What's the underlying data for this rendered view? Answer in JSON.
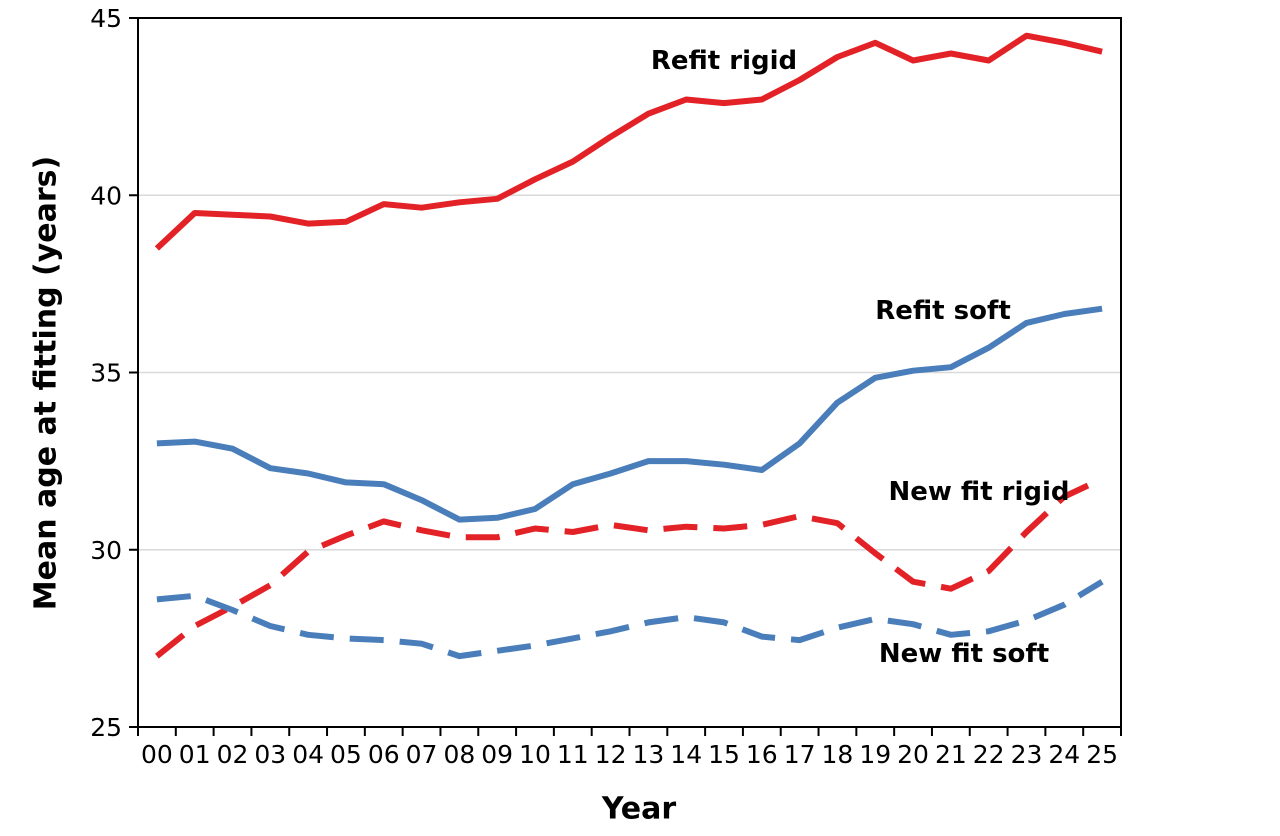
{
  "chart_data": {
    "type": "line",
    "title": "",
    "xlabel": "Year",
    "ylabel": "Mean age at fitting (years)",
    "x_labels": [
      "00",
      "01",
      "02",
      "03",
      "04",
      "05",
      "06",
      "07",
      "08",
      "09",
      "10",
      "11",
      "12",
      "13",
      "14",
      "15",
      "16",
      "17",
      "18",
      "19",
      "20",
      "21",
      "22",
      "23",
      "24",
      "25"
    ],
    "ylim": [
      25,
      45
    ],
    "y_ticks": [
      25,
      30,
      35,
      40,
      45
    ],
    "grid": "horizontal-light-gray",
    "legend_position": "inline-annotations",
    "frame_color": "#000000",
    "gridline_color": "#d9d9d9",
    "series": [
      {
        "name": "Refit rigid",
        "color": "#e32227",
        "style": "solid",
        "values": [
          38.5,
          39.5,
          39.45,
          39.4,
          39.2,
          39.25,
          39.75,
          39.65,
          39.8,
          39.9,
          40.45,
          40.95,
          41.65,
          42.3,
          42.7,
          42.6,
          42.7,
          43.25,
          43.9,
          44.3,
          43.8,
          44.0,
          43.8,
          44.5,
          44.3,
          44.05
        ]
      },
      {
        "name": "Refit soft",
        "color": "#4a7eba",
        "style": "solid",
        "values": [
          33.0,
          33.05,
          32.85,
          32.3,
          32.15,
          31.9,
          31.85,
          31.4,
          30.85,
          30.9,
          31.15,
          31.85,
          32.15,
          32.5,
          32.5,
          32.4,
          32.25,
          33.0,
          34.15,
          34.85,
          35.05,
          35.15,
          35.7,
          36.4,
          36.65,
          36.8
        ]
      },
      {
        "name": "New fit rigid",
        "color": "#e32227",
        "style": "dashed",
        "values": [
          27.0,
          27.85,
          28.4,
          29.0,
          29.95,
          30.4,
          30.8,
          30.55,
          30.35,
          30.35,
          30.6,
          30.5,
          30.7,
          30.55,
          30.65,
          30.6,
          30.7,
          30.95,
          30.75,
          29.9,
          29.1,
          28.9,
          29.4,
          30.5,
          31.5,
          32.0
        ]
      },
      {
        "name": "New fit soft",
        "color": "#4a7eba",
        "style": "dashed",
        "values": [
          28.6,
          28.7,
          28.3,
          27.85,
          27.6,
          27.5,
          27.45,
          27.35,
          27.0,
          27.15,
          27.3,
          27.5,
          27.7,
          27.95,
          28.1,
          27.95,
          27.55,
          27.45,
          27.8,
          28.05,
          27.9,
          27.6,
          27.7,
          28.0,
          28.45,
          29.1
        ]
      }
    ]
  }
}
